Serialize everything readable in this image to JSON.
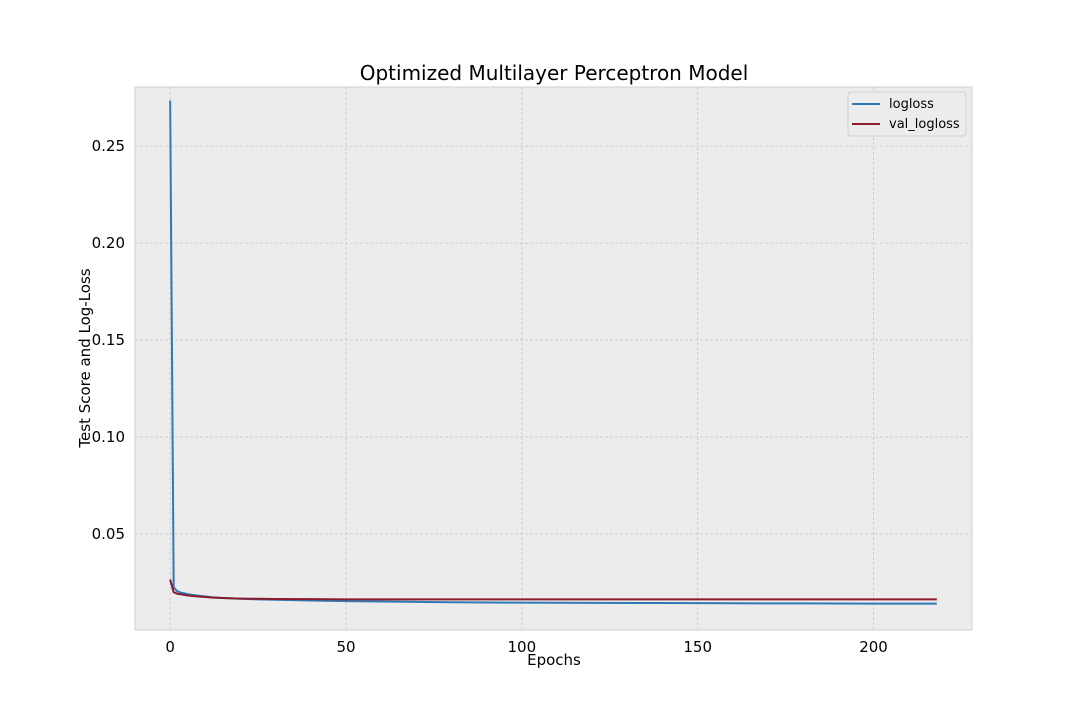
{
  "chart_data": {
    "type": "line",
    "title": "Optimized Multilayer Perceptron Model",
    "xlabel": "Epochs",
    "ylabel": "Test Score and Log-Loss",
    "xlim": [
      -10,
      228
    ],
    "ylim": [
      0.0005,
      0.2805
    ],
    "xticks": [
      0,
      50,
      100,
      150,
      200
    ],
    "xtick_labels": [
      "0",
      "50",
      "100",
      "150",
      "200"
    ],
    "yticks": [
      0.05,
      0.1,
      0.15,
      0.2,
      0.25
    ],
    "ytick_labels": [
      "0.05",
      "0.10",
      "0.15",
      "0.20",
      "0.25"
    ],
    "grid": true,
    "legend_position": "top-right",
    "background": "#ececec",
    "series": [
      {
        "name": "logloss",
        "color": "#2e7ab6",
        "x": [
          0,
          1,
          2,
          3,
          4,
          5,
          6,
          8,
          10,
          12,
          15,
          20,
          25,
          30,
          40,
          50,
          60,
          70,
          80,
          100,
          120,
          140,
          160,
          180,
          200,
          218
        ],
        "y": [
          0.2735,
          0.0225,
          0.0205,
          0.0198,
          0.0194,
          0.019,
          0.0187,
          0.0182,
          0.0178,
          0.0174,
          0.017,
          0.0166,
          0.0163,
          0.0161,
          0.0157,
          0.0154,
          0.0152,
          0.015,
          0.0148,
          0.0146,
          0.0145,
          0.0144,
          0.0143,
          0.0142,
          0.0141,
          0.0141
        ]
      },
      {
        "name": "val_logloss",
        "color": "#8b1a2e",
        "x": [
          0,
          1,
          2,
          3,
          4,
          5,
          6,
          8,
          10,
          12,
          15,
          20,
          25,
          30,
          40,
          50,
          60,
          70,
          80,
          100,
          120,
          140,
          160,
          180,
          200,
          218
        ],
        "y": [
          0.0265,
          0.02,
          0.0192,
          0.0189,
          0.0186,
          0.0183,
          0.0181,
          0.0178,
          0.0175,
          0.0172,
          0.017,
          0.0167,
          0.0166,
          0.0165,
          0.0164,
          0.0163,
          0.0163,
          0.0163,
          0.0163,
          0.0163,
          0.0163,
          0.0163,
          0.0163,
          0.0163,
          0.0163,
          0.0163
        ]
      }
    ]
  }
}
